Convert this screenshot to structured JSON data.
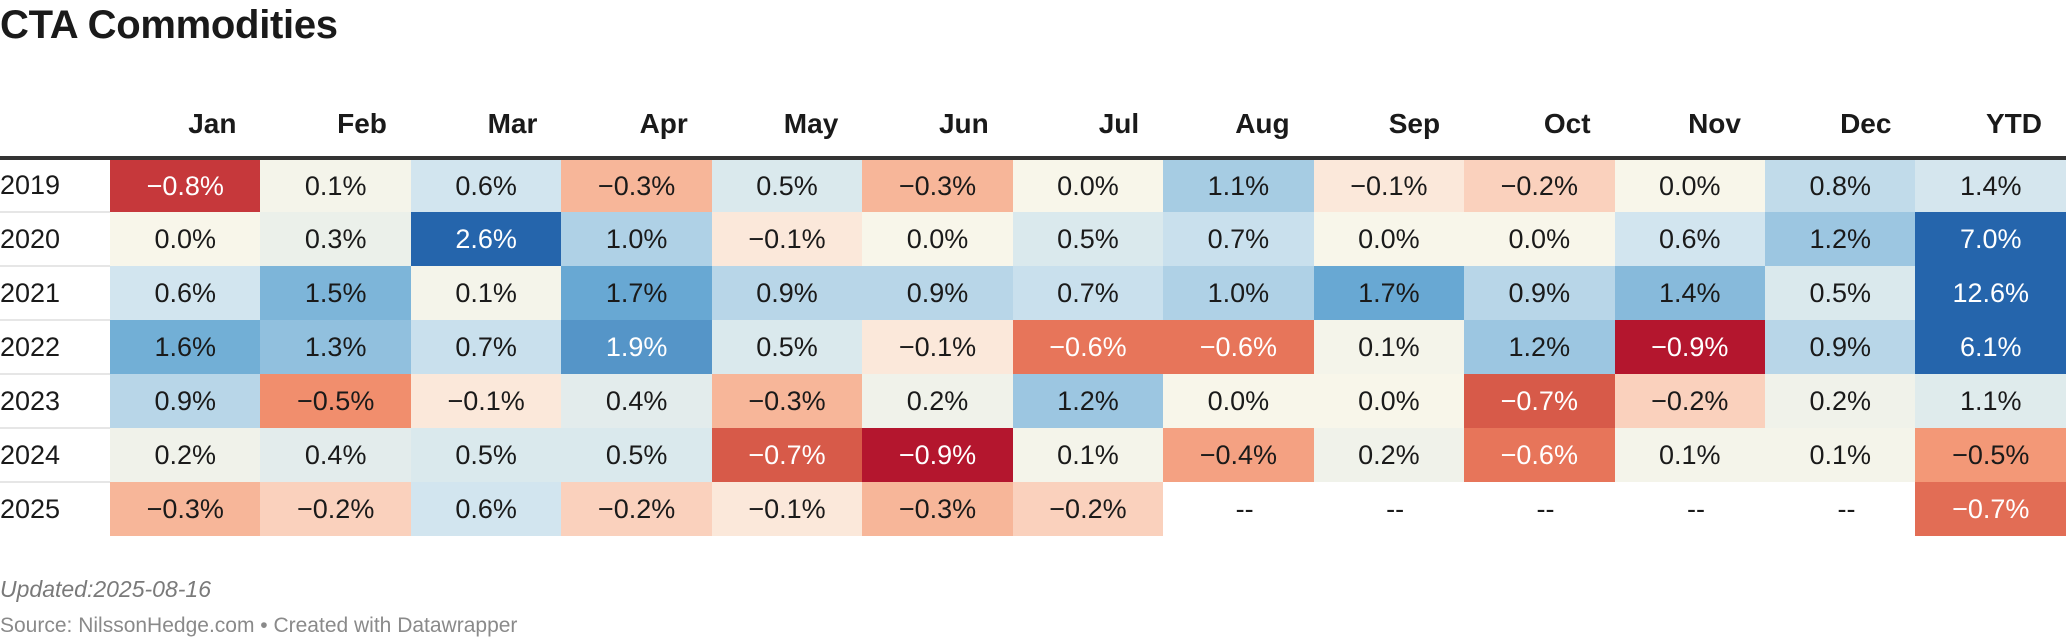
{
  "title": "CTA Commodities",
  "footer": {
    "updated": "Updated:2025-08-16",
    "source": "Source: NilssonHedge.com • Created with Datawrapper"
  },
  "chart_data": {
    "type": "heatmap",
    "title": "CTA Commodities",
    "columns": [
      "Jan",
      "Feb",
      "Mar",
      "Apr",
      "May",
      "Jun",
      "Jul",
      "Aug",
      "Sep",
      "Oct",
      "Nov",
      "Dec",
      "YTD"
    ],
    "rows": [
      {
        "year": "2019",
        "cells": [
          "−0.8%",
          "0.1%",
          "0.6%",
          "−0.3%",
          "0.5%",
          "−0.3%",
          "0.0%",
          "1.1%",
          "−0.1%",
          "−0.2%",
          "0.0%",
          "0.8%",
          "1.4%"
        ]
      },
      {
        "year": "2020",
        "cells": [
          "0.0%",
          "0.3%",
          "2.6%",
          "1.0%",
          "−0.1%",
          "0.0%",
          "0.5%",
          "0.7%",
          "0.0%",
          "0.0%",
          "0.6%",
          "1.2%",
          "7.0%"
        ]
      },
      {
        "year": "2021",
        "cells": [
          "0.6%",
          "1.5%",
          "0.1%",
          "1.7%",
          "0.9%",
          "0.9%",
          "0.7%",
          "1.0%",
          "1.7%",
          "0.9%",
          "1.4%",
          "0.5%",
          "12.6%"
        ]
      },
      {
        "year": "2022",
        "cells": [
          "1.6%",
          "1.3%",
          "0.7%",
          "1.9%",
          "0.5%",
          "−0.1%",
          "−0.6%",
          "−0.6%",
          "0.1%",
          "1.2%",
          "−0.9%",
          "0.9%",
          "6.1%"
        ]
      },
      {
        "year": "2023",
        "cells": [
          "0.9%",
          "−0.5%",
          "−0.1%",
          "0.4%",
          "−0.3%",
          "0.2%",
          "1.2%",
          "0.0%",
          "0.0%",
          "−0.7%",
          "−0.2%",
          "0.2%",
          "1.1%"
        ]
      },
      {
        "year": "2024",
        "cells": [
          "0.2%",
          "0.4%",
          "0.5%",
          "0.5%",
          "−0.7%",
          "−0.9%",
          "0.1%",
          "−0.4%",
          "0.2%",
          "−0.6%",
          "0.1%",
          "0.1%",
          "−0.5%"
        ]
      },
      {
        "year": "2025",
        "cells": [
          "−0.3%",
          "−0.2%",
          "0.6%",
          "−0.2%",
          "−0.1%",
          "−0.3%",
          "−0.2%",
          "--",
          "--",
          "--",
          "--",
          "--",
          "−0.7%"
        ]
      }
    ],
    "colors": {
      "strong_negative": "#b2182b",
      "negative": "#d6604d",
      "mid_negative": "#f4a582",
      "light_negative": "#fddbc7",
      "neutral": "#f7f7f7",
      "light_positive": "#d1e5f0",
      "positive": "#92c5de",
      "mid_positive": "#4393c3",
      "strong_positive": "#2166ac"
    }
  }
}
